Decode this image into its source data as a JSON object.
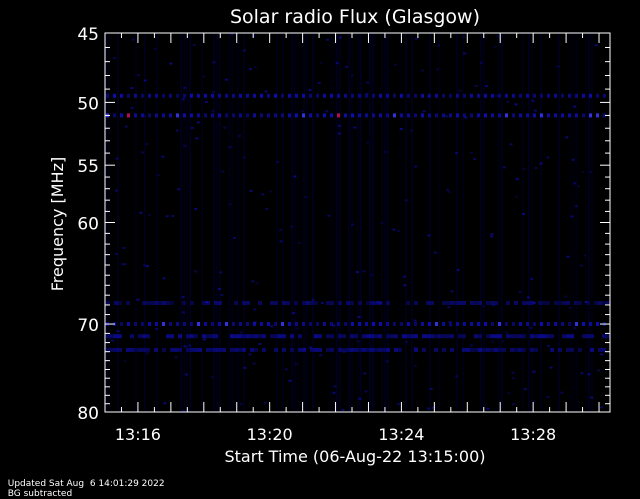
{
  "chart_data": {
    "type": "heatmap",
    "title": "Solar radio Flux (Glasgow)",
    "ylabel": "Frequency [MHz]",
    "xlabel": "Start Time (06-Aug-22 13:15:00)",
    "y_scale": "log",
    "ylim": [
      45,
      80
    ],
    "y_ticks": [
      45,
      50,
      55,
      60,
      70,
      80
    ],
    "xlim": [
      "13:15:00",
      "13:30:20"
    ],
    "x_ticks": [
      "13:16",
      "13:20",
      "13:24",
      "13:28"
    ],
    "colors": {
      "background": "#000000",
      "low": "#000024",
      "mid": "#1010d0",
      "high": "#3a3aff",
      "peak": "#b01050"
    },
    "bands_mhz": [
      {
        "freq": 49.5,
        "level": 0.75,
        "pattern": "dashed"
      },
      {
        "freq": 51.0,
        "level": 0.8,
        "pattern": "dashed"
      },
      {
        "freq": 67.8,
        "level": 0.45,
        "pattern": "patchy"
      },
      {
        "freq": 70.0,
        "level": 0.8,
        "pattern": "dashed"
      },
      {
        "freq": 71.3,
        "level": 0.6,
        "pattern": "patchy"
      },
      {
        "freq": 72.8,
        "level": 0.55,
        "pattern": "patchy"
      }
    ]
  },
  "footer": {
    "updated": "Updated Sat Aug  6 14:01:29 2022",
    "note": "BG subtracted"
  }
}
